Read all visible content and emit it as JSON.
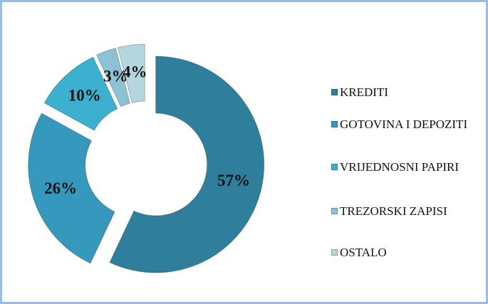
{
  "chart_data": {
    "type": "doughnut",
    "categories": [
      "KREDITI",
      "GOTOVINA I DEPOZITI",
      "VRIJEDNOSNI PAPIRI",
      "TREZORSKI ZAPISI",
      "OSTALO"
    ],
    "values": [
      57,
      26,
      10,
      3,
      4
    ],
    "value_labels": [
      "57%",
      "26%",
      "10%",
      "3%",
      "4%"
    ],
    "colors": [
      "#2f7f9c",
      "#3598bc",
      "#3bb0cf",
      "#8cc3d4",
      "#b4d6df"
    ],
    "legend": "right"
  }
}
